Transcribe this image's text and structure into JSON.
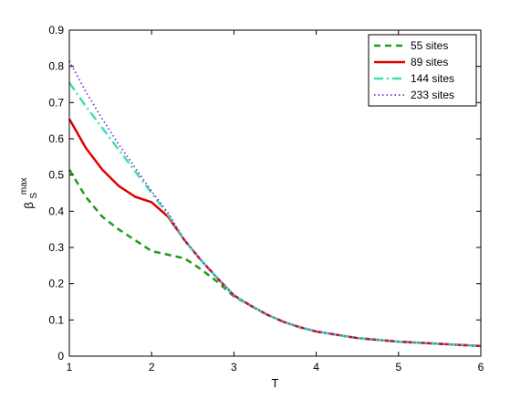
{
  "chart_data": {
    "type": "line",
    "xlabel": "T",
    "ylabel_base": "β",
    "ylabel_sub": "S",
    "ylabel_sup": "max",
    "xlim": [
      1,
      6
    ],
    "ylim": [
      0,
      0.9
    ],
    "xticks": [
      "1",
      "2",
      "3",
      "4",
      "5",
      "6"
    ],
    "yticks": [
      "0",
      "0.1",
      "0.2",
      "0.3",
      "0.4",
      "0.5",
      "0.6",
      "0.7",
      "0.8",
      "0.9"
    ],
    "grid": false,
    "legend_position": "top-right",
    "series": [
      {
        "name": "55 sites",
        "color": "#1f9a1f",
        "dash": "dashed",
        "x": [
          1.0,
          1.2,
          1.4,
          1.6,
          1.8,
          2.0,
          2.2,
          2.4,
          2.6,
          2.8,
          3.0,
          3.2,
          3.4,
          3.6,
          3.8,
          4.0,
          4.5,
          5.0,
          5.5,
          6.0
        ],
        "y": [
          0.515,
          0.44,
          0.385,
          0.35,
          0.32,
          0.29,
          0.28,
          0.27,
          0.24,
          0.205,
          0.165,
          0.14,
          0.115,
          0.095,
          0.08,
          0.068,
          0.05,
          0.04,
          0.034,
          0.028
        ]
      },
      {
        "name": "89 sites",
        "color": "#e00000",
        "dash": "solid",
        "x": [
          1.0,
          1.2,
          1.4,
          1.6,
          1.8,
          2.0,
          2.2,
          2.4,
          2.6,
          2.8,
          3.0,
          3.2,
          3.4,
          3.6,
          3.8,
          4.0,
          4.5,
          5.0,
          5.5,
          6.0
        ],
        "y": [
          0.655,
          0.575,
          0.515,
          0.47,
          0.44,
          0.425,
          0.385,
          0.32,
          0.265,
          0.215,
          0.168,
          0.14,
          0.115,
          0.095,
          0.08,
          0.068,
          0.05,
          0.04,
          0.034,
          0.028
        ]
      },
      {
        "name": "144 sites",
        "color": "#40e0b0",
        "dash": "dashdot",
        "x": [
          1.0,
          1.2,
          1.4,
          1.6,
          1.8,
          2.0,
          2.2,
          2.4,
          2.6,
          2.8,
          3.0,
          3.2,
          3.4,
          3.6,
          3.8,
          4.0,
          4.5,
          5.0,
          5.5,
          6.0
        ],
        "y": [
          0.755,
          0.69,
          0.63,
          0.57,
          0.51,
          0.45,
          0.39,
          0.32,
          0.265,
          0.215,
          0.168,
          0.14,
          0.115,
          0.095,
          0.08,
          0.068,
          0.05,
          0.04,
          0.034,
          0.028
        ]
      },
      {
        "name": "233 sites",
        "color": "#8a2be2",
        "dash": "dotted",
        "x": [
          1.0,
          1.2,
          1.4,
          1.6,
          1.8,
          2.0,
          2.2,
          2.4,
          2.6,
          2.8,
          3.0,
          3.2,
          3.4,
          3.6,
          3.8,
          4.0,
          4.5,
          5.0,
          5.5,
          6.0
        ],
        "y": [
          0.815,
          0.73,
          0.655,
          0.585,
          0.52,
          0.455,
          0.395,
          0.32,
          0.265,
          0.215,
          0.168,
          0.14,
          0.115,
          0.095,
          0.08,
          0.068,
          0.05,
          0.04,
          0.034,
          0.028
        ]
      }
    ]
  }
}
